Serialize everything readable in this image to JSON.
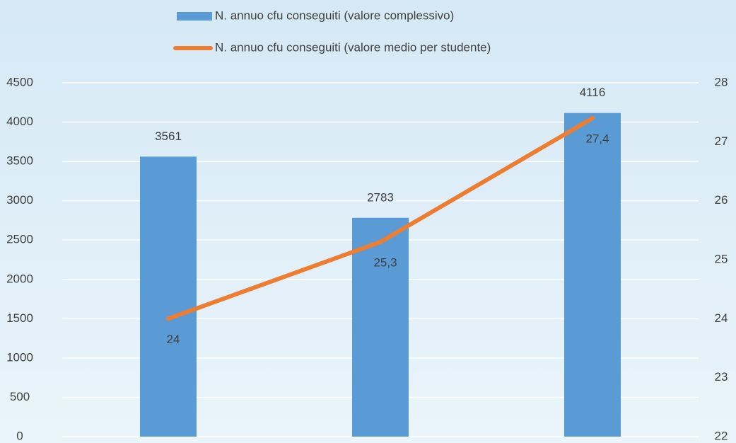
{
  "chart_data": {
    "type": "bar",
    "legend": "top",
    "grid": true,
    "categories": [
      null,
      null,
      null
    ],
    "series": [
      {
        "name": "N. annuo cfu conseguiti (valore complessivo)",
        "color": "#5b9bd5",
        "type": "bar",
        "values": [
          3561,
          2783,
          4116
        ]
      },
      {
        "name": "N. annuo cfu conseguiti (valore medio per studente)",
        "color": "#ed7d31",
        "type": "line",
        "axis": "y2",
        "values": [
          24,
          25.3,
          27.4
        ],
        "value_labels": [
          "24",
          "25,3",
          "27,4"
        ]
      }
    ],
    "ylim": [
      0,
      4500
    ],
    "yticks": [
      0,
      500,
      1000,
      1500,
      2000,
      2500,
      3000,
      3500,
      4000,
      4500
    ],
    "y2lim": [
      22,
      28
    ],
    "y2ticks": [
      22,
      23,
      24,
      25,
      26,
      27,
      28
    ]
  }
}
